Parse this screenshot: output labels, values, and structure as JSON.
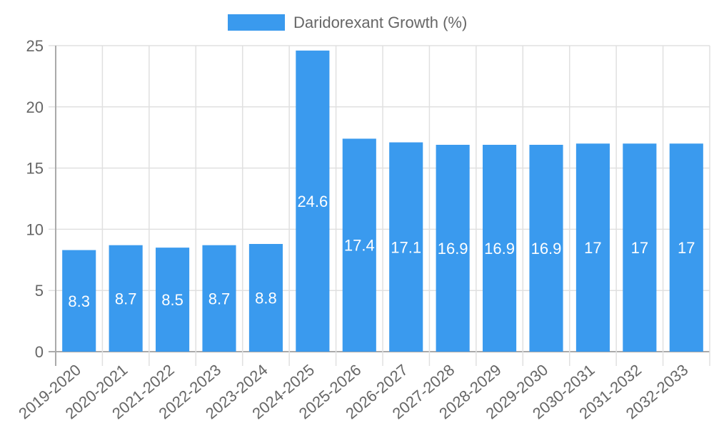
{
  "legend": {
    "label": "Daridorexant Growth (%)",
    "color": "#3a9aee"
  },
  "chart_data": {
    "type": "bar",
    "title": "",
    "xlabel": "",
    "ylabel": "",
    "ylim": [
      0,
      25
    ],
    "yticks": [
      0,
      5,
      10,
      15,
      20,
      25
    ],
    "grid": true,
    "legend_position": "top",
    "categories": [
      "2019-2020",
      "2020-2021",
      "2021-2022",
      "2022-2023",
      "2023-2024",
      "2024-2025",
      "2025-2026",
      "2026-2027",
      "2027-2028",
      "2028-2029",
      "2029-2030",
      "2030-2031",
      "2031-2032",
      "2032-2033"
    ],
    "series": [
      {
        "name": "Daridorexant Growth (%)",
        "color": "#3a9aee",
        "values": [
          8.3,
          8.7,
          8.5,
          8.7,
          8.8,
          24.6,
          17.4,
          17.1,
          16.9,
          16.9,
          16.9,
          17,
          17,
          17
        ]
      }
    ]
  }
}
